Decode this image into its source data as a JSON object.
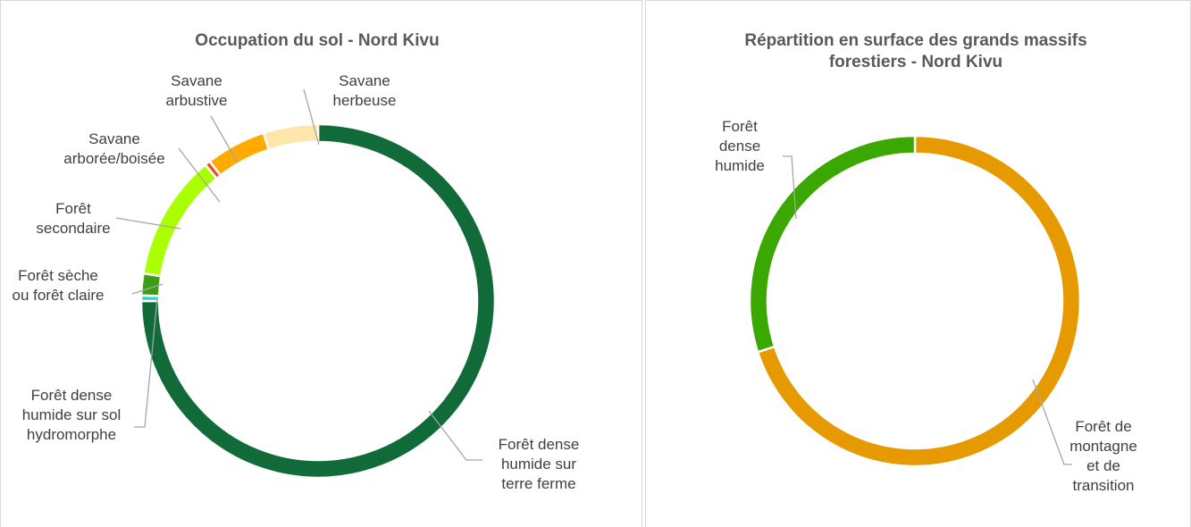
{
  "chart_data": [
    {
      "type": "donut",
      "title": "Occupation du sol - Nord Kivu",
      "categories": [
        "Forêt dense humide sur terre ferme",
        "Forêt dense humide sur sol hydromorphe",
        "Forêt sèche ou forêt claire",
        "Forêt secondaire",
        "Savane arborée/boisée",
        "Savane arbustive",
        "Savane herbeuse"
      ],
      "values": [
        75,
        0.5,
        2,
        11.5,
        0.5,
        5.5,
        5
      ],
      "colors": [
        "#106b38",
        "#2fd3c0",
        "#3a9e18",
        "#aaff00",
        "#e8501e",
        "#ffaa00",
        "#ffe6aa"
      ]
    },
    {
      "type": "donut",
      "title": "Répartition en surface des grands massifs forestiers - Nord Kivu",
      "categories": [
        "Forêt de montagne et de transition",
        "Forêt dense humide"
      ],
      "values": [
        70,
        30
      ],
      "colors": [
        "#e69a00",
        "#3aa800"
      ]
    }
  ]
}
